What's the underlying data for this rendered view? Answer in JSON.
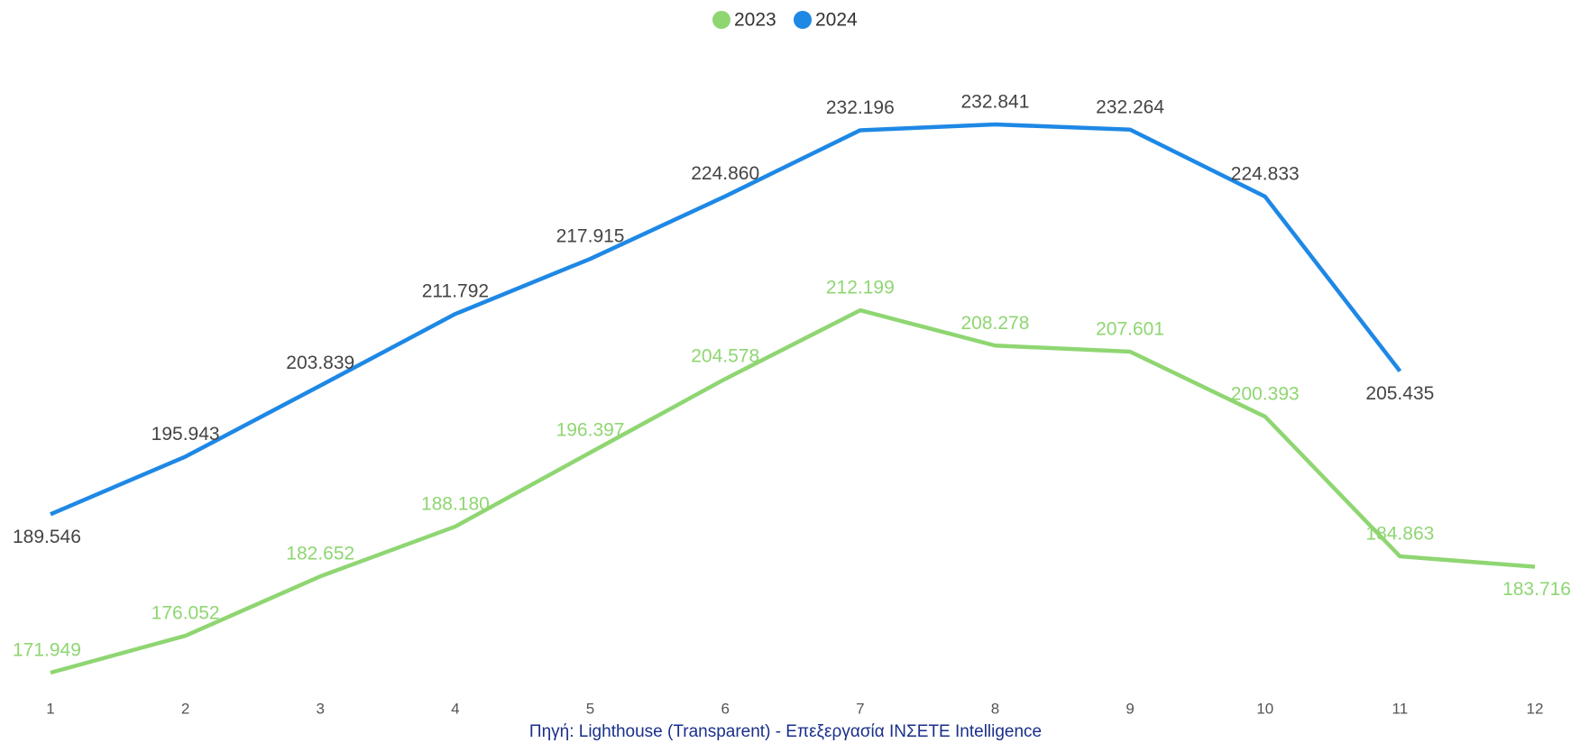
{
  "chart_data": {
    "type": "line",
    "x": [
      1,
      2,
      3,
      4,
      5,
      6,
      7,
      8,
      9,
      10,
      11,
      12
    ],
    "series": [
      {
        "name": "2023",
        "color": "#8fd672",
        "values": [
          171949,
          176052,
          182652,
          188180,
          196397,
          204578,
          212199,
          208278,
          207601,
          200393,
          184863,
          183716
        ],
        "value_labels": [
          "171.949",
          "176.052",
          "182.652",
          "188.180",
          "196.397",
          "204.578",
          "212.199",
          "208.278",
          "207.601",
          "200.393",
          "184.863",
          "183.716"
        ]
      },
      {
        "name": "2024",
        "color": "#1e88e5",
        "values": [
          189546,
          195943,
          203839,
          211792,
          217915,
          224860,
          232196,
          232841,
          232264,
          224833,
          205435,
          null
        ],
        "value_labels": [
          "189.546",
          "195.943",
          "203.839",
          "211.792",
          "217.915",
          "224.860",
          "232.196",
          "232.841",
          "232.264",
          "224.833",
          "205.435",
          null
        ]
      }
    ],
    "legend": "top",
    "source": "Πηγή: Lighthouse (Transparent) - Επεξεργασία ΙΝΣΕΤΕ Intelligence"
  }
}
